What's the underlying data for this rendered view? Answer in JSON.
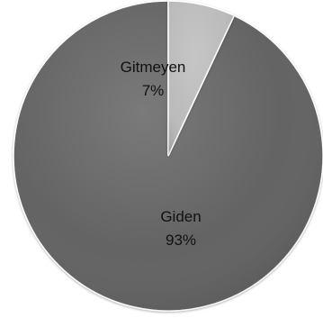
{
  "chart_data": {
    "type": "pie",
    "start_angle_deg": 0,
    "direction": "counterclockwise",
    "slices": [
      {
        "label": "Giden",
        "value": 93,
        "value_label": "93%",
        "color": "#5d5d5d"
      },
      {
        "label": "Gitmeyen",
        "value": 7,
        "value_label": "7%",
        "color": "#b9b9b9"
      }
    ]
  }
}
